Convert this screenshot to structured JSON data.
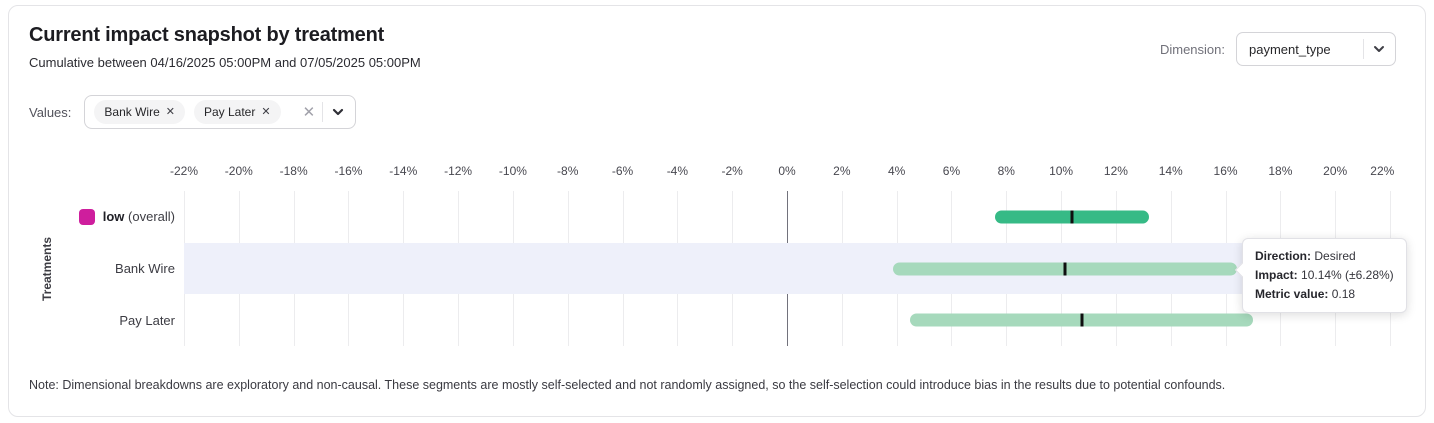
{
  "card": {
    "title": "Current impact snapshot by treatment",
    "subtitle": "Cumulative between 04/16/2025 05:00PM and 07/05/2025 05:00PM",
    "note": "Note: Dimensional breakdowns are exploratory and non-causal. These segments are mostly self-selected and not randomly assigned, so the self-selection could introduce bias in the results due to potential confounds."
  },
  "dimension_control": {
    "label": "Dimension:",
    "selected": "payment_type"
  },
  "values_control": {
    "label": "Values:",
    "chips": [
      "Bank Wire",
      "Pay Later"
    ],
    "remove_icon": "✕",
    "clear_icon": "✕"
  },
  "tooltip": {
    "lines": [
      {
        "label": "Direction:",
        "value": "Desired"
      },
      {
        "label": "Impact:",
        "value": "10.14% (±6.28%)"
      },
      {
        "label": "Metric value:",
        "value": "0.18"
      }
    ]
  },
  "chart_data": {
    "type": "bar",
    "variant": "horizontal-interval",
    "title": "Current impact snapshot by treatment",
    "xlabel": "",
    "ylabel": "Treatments",
    "xlim": [
      -22,
      22
    ],
    "tick_step": 2,
    "tick_suffix": "%",
    "grid": true,
    "rows": [
      {
        "label": "low (overall)",
        "bold_part": "low",
        "rest_part": "(overall)",
        "swatch_color": "#ce1e9d",
        "low": 7.6,
        "high": 13.2,
        "impact": 10.4,
        "bar_color": "#36ba86",
        "highlighted": false
      },
      {
        "label": "Bank Wire",
        "low": 3.86,
        "high": 16.42,
        "impact": 10.14,
        "bar_color": "#a6d9bc",
        "highlighted": true,
        "direction": "Desired",
        "impact_text": "10.14% (±6.28%)",
        "metric_value": "0.18"
      },
      {
        "label": "Pay Later",
        "low": 4.5,
        "high": 17.0,
        "impact": 10.75,
        "bar_color": "#a6d9bc",
        "highlighted": false
      }
    ],
    "colors": {
      "overall_bar": "#36ba86",
      "segment_bar": "#a6d9bc",
      "center_marker": "#0f0f10",
      "legend_swatch": "#ce1e9d",
      "highlight_band": "#eef0fa",
      "zero_line": "#72727c",
      "gridline": "#ececee"
    }
  }
}
